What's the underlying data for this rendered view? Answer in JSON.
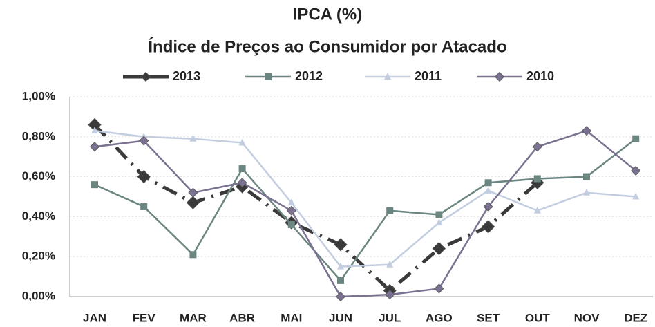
{
  "chart_data": {
    "type": "line",
    "title": "IPCA (%)",
    "subtitle": "Índice de Preços ao Consumidor por Atacado",
    "categories": [
      "JAN",
      "FEV",
      "MAR",
      "ABR",
      "MAI",
      "JUN",
      "JUL",
      "AGO",
      "SET",
      "OUT",
      "NOV",
      "DEZ"
    ],
    "series": [
      {
        "name": "2013",
        "color": "#3a3a3a",
        "dash": "dashdot",
        "marker": "diamond",
        "values": [
          0.86,
          0.6,
          0.47,
          0.55,
          0.37,
          0.26,
          0.03,
          0.24,
          0.35,
          0.57,
          null,
          null
        ]
      },
      {
        "name": "2012",
        "color": "#6b8580",
        "dash": "solid",
        "marker": "square",
        "values": [
          0.56,
          0.45,
          0.21,
          0.64,
          0.36,
          0.08,
          0.43,
          0.41,
          0.57,
          0.59,
          0.6,
          0.79
        ]
      },
      {
        "name": "2011",
        "color": "#c3cde0",
        "dash": "solid",
        "marker": "triangle",
        "values": [
          0.83,
          0.8,
          0.79,
          0.77,
          0.47,
          0.15,
          0.16,
          0.37,
          0.53,
          0.43,
          0.52,
          0.5
        ]
      },
      {
        "name": "2010",
        "color": "#7a7290",
        "dash": "solid",
        "marker": "diamond",
        "values": [
          0.75,
          0.78,
          0.52,
          0.57,
          0.43,
          0.0,
          0.01,
          0.04,
          0.45,
          0.75,
          0.83,
          0.63
        ]
      }
    ],
    "ylim": [
      0,
      1
    ],
    "yticks": [
      {
        "value": 0,
        "label": "0,00%"
      },
      {
        "value": 0.2,
        "label": "0,20%"
      },
      {
        "value": 0.4,
        "label": "0,40%"
      },
      {
        "value": 0.6,
        "label": "0,60%"
      },
      {
        "value": 0.8,
        "label": "0,80%"
      },
      {
        "value": 1,
        "label": "1,00%"
      }
    ],
    "grid": true,
    "legend": "top"
  }
}
